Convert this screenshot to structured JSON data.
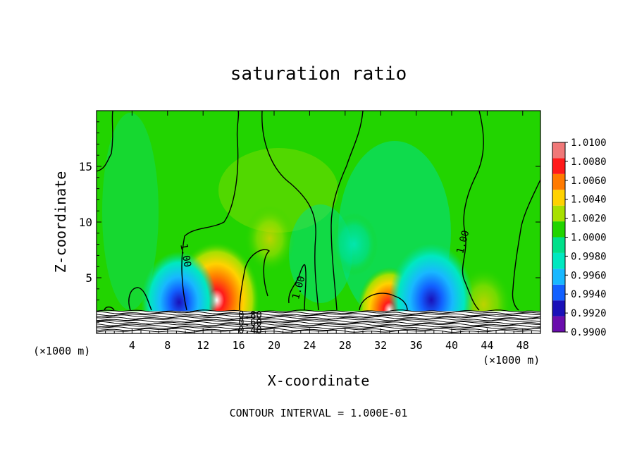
{
  "chart_data": {
    "type": "heatmap",
    "title": "saturation ratio",
    "xlabel": "X-coordinate",
    "ylabel": "Z-coordinate",
    "x_unit_left": "(×1000 m)",
    "x_unit_right": "(×1000 m)",
    "xlim": [
      0,
      50
    ],
    "ylim": [
      0,
      20
    ],
    "x_ticks": [
      4,
      8,
      12,
      16,
      20,
      24,
      28,
      32,
      36,
      40,
      44,
      48
    ],
    "y_ticks": [
      5,
      10,
      15
    ],
    "footer": "CONTOUR INTERVAL = 1.000E-01",
    "colorbar": {
      "levels": [
        0.99,
        0.992,
        0.994,
        0.996,
        0.998,
        1.0,
        1.002,
        1.004,
        1.006,
        1.008,
        1.01
      ],
      "labels": [
        "1.0100",
        "1.0080",
        "1.0060",
        "1.0040",
        "1.0020",
        "1.0000",
        "0.9980",
        "0.9960",
        "0.9940",
        "0.9920",
        "0.9900"
      ],
      "colors": [
        "#6a0dad",
        "#1a10b8",
        "#1260ff",
        "#18b8ff",
        "#00e8c0",
        "#00e08a",
        "#22d400",
        "#a8e000",
        "#ffd200",
        "#ff7a00",
        "#ff1a1a",
        "#f07878"
      ]
    },
    "contour_labels": [
      {
        "text": "1.00",
        "x": 10.0,
        "y": 7.0,
        "angle": 80
      },
      {
        "text": "1.00",
        "x": 22.8,
        "y": 4.1,
        "angle": -75
      },
      {
        "text": "1.00",
        "x": 41.3,
        "y": 8.2,
        "angle": -75
      },
      {
        "text": "0.80",
        "x": 17.3,
        "y": 1.6,
        "angle": 0
      },
      {
        "text": "0.60",
        "x": 17.3,
        "y": 0.95,
        "angle": 0
      },
      {
        "text": "0.40",
        "x": 17.3,
        "y": 0.25,
        "angle": 0
      }
    ],
    "features": [
      {
        "kind": "warm",
        "x": 13.5,
        "y": 3.0,
        "strength": 1.0
      },
      {
        "kind": "warm",
        "x": 19.5,
        "y": 8.5,
        "strength": 0.35
      },
      {
        "kind": "warm",
        "x": 43.6,
        "y": 2.6,
        "strength": 0.45
      },
      {
        "kind": "warm",
        "x": 33.0,
        "y": 2.1,
        "strength": 0.6
      },
      {
        "kind": "cool",
        "x": 9.3,
        "y": 2.8,
        "strength": 0.8
      },
      {
        "kind": "cool",
        "x": 37.7,
        "y": 3.0,
        "strength": 0.95
      },
      {
        "kind": "cool",
        "x": 29.0,
        "y": 8.0,
        "strength": 0.3
      }
    ]
  }
}
